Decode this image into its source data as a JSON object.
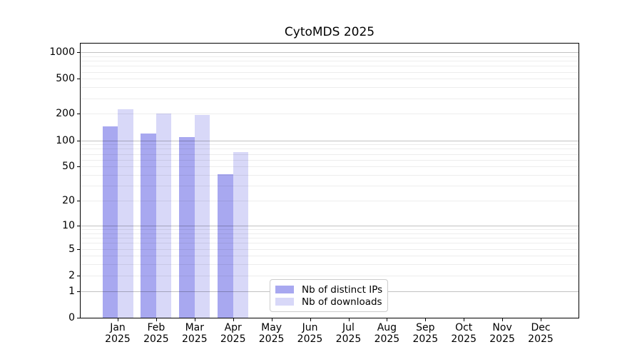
{
  "figure": {
    "background": "#ffffff"
  },
  "chart_data": {
    "type": "bar",
    "title": "CytoMDS 2025",
    "categories": [
      "Jan 2025",
      "Feb 2025",
      "Mar 2025",
      "Apr 2025",
      "May 2025",
      "Jun 2025",
      "Jul 2025",
      "Aug 2025",
      "Sep 2025",
      "Oct 2025",
      "Nov 2025",
      "Dec 2025"
    ],
    "series": [
      {
        "name": "Nb of distinct IPs",
        "color": "#a8a8f0",
        "values": [
          143,
          120,
          108,
          41,
          null,
          null,
          null,
          null,
          null,
          null,
          null,
          null
        ]
      },
      {
        "name": "Nb of downloads",
        "color": "#d8d8f8",
        "values": [
          226,
          200,
          194,
          74,
          null,
          null,
          null,
          null,
          null,
          null,
          null,
          null
        ]
      }
    ],
    "xlabel": "",
    "ylabel": "",
    "yscale": "log10(value+1)",
    "ytick_labels": [
      0,
      1,
      2,
      5,
      10,
      20,
      50,
      100,
      200,
      500,
      1000
    ],
    "major_grid_values": [
      1,
      10,
      100,
      1000
    ],
    "minor_grid_decades": [
      1,
      10,
      100
    ],
    "ylim": [
      0,
      1250
    ],
    "grid": "horizontal only, drawn over bars",
    "legend_position": "lower center inside plot"
  },
  "colors": {
    "major_grid": "rgba(0,0,0,0.24)",
    "minor_grid": "rgba(0,0,0,0.07)",
    "frame": "#000000",
    "text": "#000000",
    "legend_border": "#cccccc"
  }
}
